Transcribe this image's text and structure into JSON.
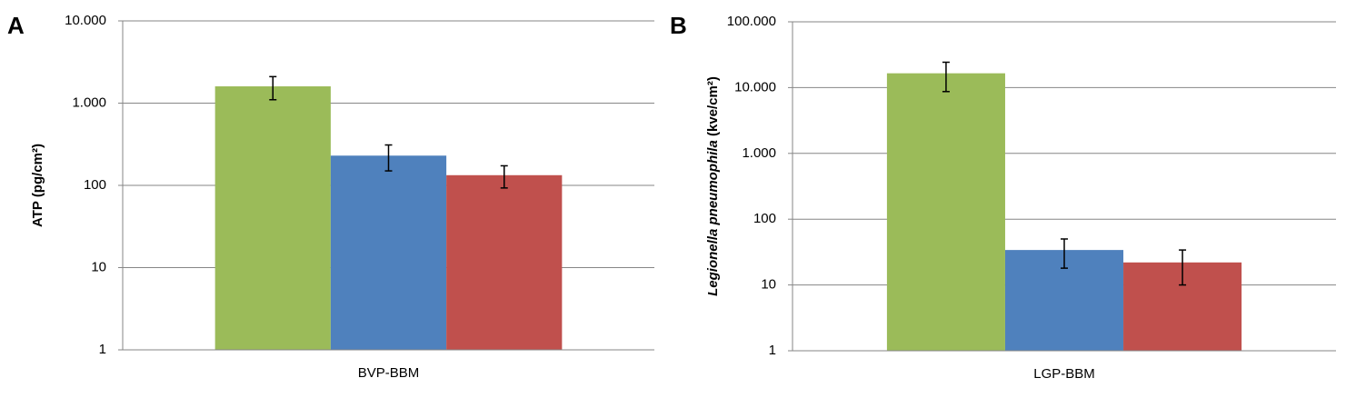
{
  "chart_data": [
    {
      "type": "bar",
      "panel": "A",
      "ylabel": "ATP (pg/cm²)",
      "categories": [
        "BVP-BBM"
      ],
      "log_scale": true,
      "grid": true,
      "ylim": [
        1,
        10000
      ],
      "yticks": [
        1,
        10,
        100,
        {
          "value": 1000,
          "label": "1.000"
        },
        {
          "value": 10000,
          "label": "10.000"
        }
      ],
      "series": [
        {
          "color": "#9bbb59",
          "values": [
            1600
          ],
          "errors": [
            500
          ]
        },
        {
          "color": "#4f81bd",
          "values": [
            230
          ],
          "errors": [
            80
          ]
        },
        {
          "color": "#c0504d",
          "values": [
            133
          ],
          "errors": [
            40
          ]
        }
      ]
    },
    {
      "type": "bar",
      "panel": "B",
      "ylabel": "Legionella pneumophila (kve/cm²)",
      "ylabel_italic": "Legionella pneumophila",
      "categories": [
        "LGP-BBM"
      ],
      "log_scale": true,
      "grid": true,
      "ylim": [
        1,
        100000
      ],
      "yticks": [
        1,
        10,
        100,
        {
          "value": 1000,
          "label": "1.000"
        },
        {
          "value": 10000,
          "label": "10.000"
        },
        {
          "value": 100000,
          "label": "100.000"
        }
      ],
      "series": [
        {
          "color": "#9bbb59",
          "values": [
            16500
          ],
          "errors": [
            7800
          ]
        },
        {
          "color": "#4f81bd",
          "values": [
            34
          ],
          "errors": [
            16
          ]
        },
        {
          "color": "#c0504d",
          "values": [
            22
          ],
          "errors": [
            12
          ]
        }
      ]
    }
  ]
}
